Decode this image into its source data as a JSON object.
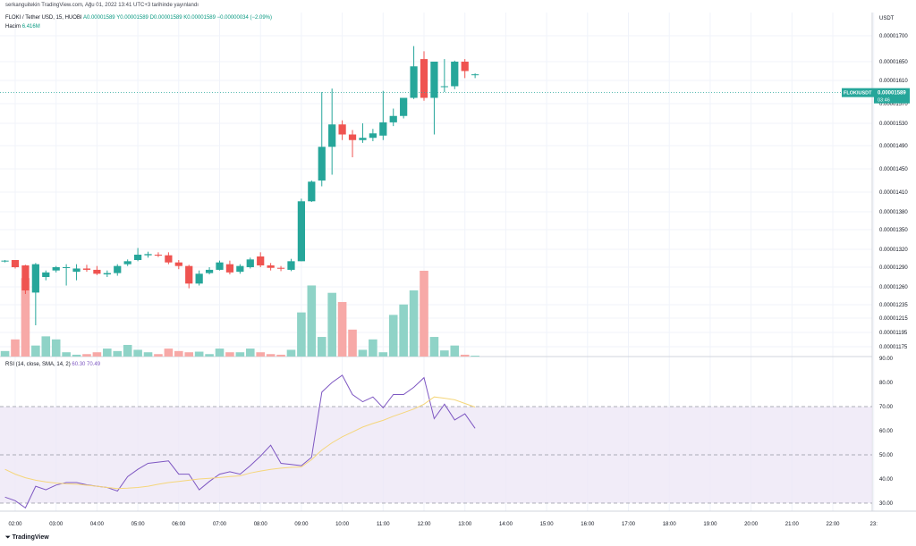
{
  "header": {
    "attribution": "serkanguitekin TradingView.com, Ağu 01, 2022 13:41 UTC+3 tarihinde yayınlandı",
    "symbol_line": "FLOKI / Tether USD, 15, HUOBI",
    "ohlc": "A0.00001589 Y0.00001589 D0.00001589 K0.00001589 −0.00000034 (−2.09%)",
    "volume_label": "Hacim",
    "volume_value": "6.416M",
    "rsi_label": "RSI (14, close, SMA, 14, 2)",
    "rsi_values": "60.30  70.49"
  },
  "brand": "TradingView",
  "colors": {
    "up": "#26a69a",
    "down": "#ef5350",
    "up_vol": "#8fd3c7",
    "down_vol": "#f7a9a7",
    "rsi": "#7e57c2",
    "rsi_ma": "#f5d67b",
    "band": "#ede7f6"
  },
  "chart_data": [
    {
      "type": "candlestick",
      "title": "FLOKI / Tether USD, 15, HUOBI",
      "currency": "USDT",
      "last_price_label": "FLOKIUSDT",
      "last_price": "0.00001589",
      "countdown": "03:46",
      "y_ticks": [
        "0.00001700",
        "0.00001650",
        "0.00001610",
        "0.00001570",
        "0.00001530",
        "0.00001490",
        "0.00001450",
        "0.00001410",
        "0.00001380",
        "0.00001350",
        "0.00001320",
        "0.00001290",
        "0.00001260",
        "0.00001235",
        "0.00001215",
        "0.00001195",
        "0.00001175"
      ],
      "x_ticks": [
        "02:00",
        "03:00",
        "04:00",
        "05:00",
        "06:00",
        "07:00",
        "08:00",
        "09:00",
        "10:00",
        "11:00",
        "12:00",
        "13:00",
        "14:00",
        "15:00",
        "16:00",
        "17:00",
        "18:00",
        "19:00",
        "20:00",
        "21:00",
        "22:00",
        "23:"
      ],
      "ohlc": [
        [
          1300,
          1302,
          1298,
          1301
        ],
        [
          1302,
          1302,
          1288,
          1290
        ],
        [
          1293,
          1294,
          1250,
          1255
        ],
        [
          1252,
          1297,
          1205,
          1295
        ],
        [
          1275,
          1285,
          1270,
          1282
        ],
        [
          1285,
          1292,
          1282,
          1290
        ],
        [
          1289,
          1295,
          1262,
          1290
        ],
        [
          1283,
          1295,
          1270,
          1288
        ],
        [
          1288,
          1294,
          1283,
          1286
        ],
        [
          1286,
          1292,
          1278,
          1280
        ],
        [
          1279,
          1285,
          1275,
          1281
        ],
        [
          1281,
          1295,
          1277,
          1292
        ],
        [
          1295,
          1303,
          1292,
          1300
        ],
        [
          1302,
          1322,
          1300,
          1311
        ],
        [
          1310,
          1316,
          1306,
          1312
        ],
        [
          1311,
          1315,
          1307,
          1310
        ],
        [
          1310,
          1315,
          1295,
          1298
        ],
        [
          1298,
          1302,
          1287,
          1292
        ],
        [
          1292,
          1294,
          1258,
          1265
        ],
        [
          1265,
          1285,
          1262,
          1280
        ],
        [
          1281,
          1290,
          1279,
          1286
        ],
        [
          1286,
          1301,
          1285,
          1298
        ],
        [
          1295,
          1301,
          1279,
          1282
        ],
        [
          1283,
          1295,
          1280,
          1292
        ],
        [
          1290,
          1306,
          1288,
          1303
        ],
        [
          1308,
          1315,
          1290,
          1293
        ],
        [
          1293,
          1297,
          1285,
          1289
        ],
        [
          1289,
          1292,
          1284,
          1288
        ],
        [
          1286,
          1304,
          1284,
          1300
        ],
        [
          1300,
          1400,
          1300,
          1396
        ],
        [
          1396,
          1430,
          1395,
          1428
        ],
        [
          1430,
          1590,
          1420,
          1488
        ],
        [
          1488,
          1596,
          1440,
          1528
        ],
        [
          1528,
          1536,
          1500,
          1510
        ],
        [
          1510,
          1518,
          1470,
          1500
        ],
        [
          1500,
          1530,
          1495,
          1504
        ],
        [
          1504,
          1520,
          1498,
          1512
        ],
        [
          1508,
          1592,
          1500,
          1532
        ],
        [
          1532,
          1560,
          1525,
          1545
        ],
        [
          1545,
          1580,
          1540,
          1580
        ],
        [
          1580,
          1680,
          1578,
          1640
        ],
        [
          1655,
          1670,
          1575,
          1580
        ],
        [
          1580,
          1650,
          1510,
          1650
        ],
        [
          1600,
          1655,
          1590,
          1600
        ],
        [
          1600,
          1652,
          1595,
          1650
        ],
        [
          1650,
          1655,
          1615,
          1630
        ],
        [
          1623,
          1625,
          1615,
          1623
        ]
      ],
      "volume": [
        0.9,
        2.8,
        12.8,
        1.8,
        3.3,
        2.8,
        0.7,
        0.3,
        0.4,
        0.7,
        1.3,
        0.9,
        1.9,
        1.1,
        0.7,
        0.4,
        1.3,
        0.9,
        0.7,
        0.8,
        0.4,
        1.3,
        0.7,
        0.7,
        1.3,
        0.7,
        0.4,
        0.3,
        1.1,
        7.2,
        11.6,
        3.2,
        10.4,
        8.9,
        4.4,
        1.1,
        2.8,
        0.7,
        6.8,
        8.5,
        10.8,
        14.0,
        3.2,
        1.0,
        1.8,
        0.3,
        0.1
      ],
      "volume_unit": "M"
    },
    {
      "type": "line",
      "title": "RSI (14, close, SMA, 14, 2)",
      "y_ticks": [
        "90.00",
        "80.00",
        "70.00",
        "60.00",
        "50.00",
        "40.00",
        "30.00"
      ],
      "ylim": [
        27,
        90
      ],
      "bands": [
        70,
        50,
        30
      ],
      "series": [
        {
          "name": "",
          "values": [
            32.5,
            31,
            28,
            37,
            35.5,
            37.5,
            38.5,
            38.5,
            37.6,
            37,
            36.5,
            35,
            41,
            44,
            46.5,
            47,
            47.5,
            42,
            42,
            35.5,
            39,
            42,
            43,
            42,
            45.5,
            49.5,
            54,
            46.5,
            46,
            45.5,
            49,
            76,
            80,
            83,
            75,
            72,
            74,
            69.5,
            75,
            75,
            78,
            82,
            65,
            71,
            64.5,
            67,
            61
          ]
        },
        {
          "name": "",
          "values": [
            44,
            42,
            40.5,
            39.5,
            38.8,
            38.3,
            38,
            37.8,
            37.4,
            37,
            36.5,
            36,
            36.2,
            36.5,
            37,
            37.8,
            38.5,
            39,
            39.5,
            40,
            40.3,
            40.6,
            41,
            41.3,
            42.5,
            43.3,
            44,
            44.5,
            44.8,
            45,
            48,
            52,
            55,
            57.5,
            59.5,
            61.5,
            63,
            64.3,
            66,
            67.5,
            69,
            71,
            74,
            73.5,
            72.8,
            71.3,
            69.8
          ]
        }
      ]
    }
  ]
}
